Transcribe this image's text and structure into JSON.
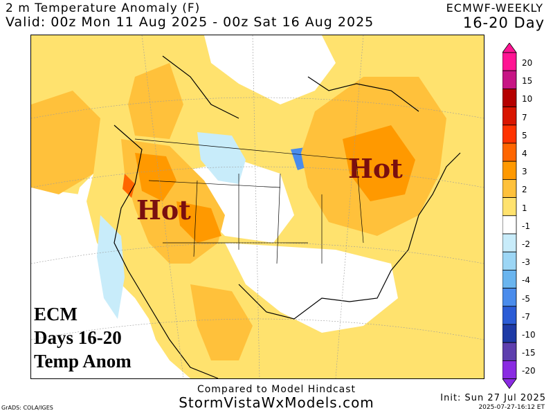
{
  "header": {
    "title": "2 m Temperature Anomaly (F)",
    "valid": "Valid: 00z Mon 11 Aug 2025 - 00z Sat 16 Aug 2025",
    "model": "ECMWF-WEEKLY",
    "period": "16-20 Day"
  },
  "map": {
    "annotations": {
      "hot_west": "Hot",
      "hot_east": "Hot"
    },
    "ecm_block": {
      "line1": "ECM",
      "line2": "Days 16-20",
      "line3": "Temp Anom"
    }
  },
  "colorbar": {
    "labels": [
      "20",
      "15",
      "10",
      "7",
      "5",
      "4",
      "3",
      "2",
      "1",
      "-1",
      "-2",
      "-3",
      "-4",
      "-5",
      "-7",
      "-10",
      "-15",
      "-20"
    ],
    "colors": [
      "#ff1493",
      "#c71585",
      "#b50000",
      "#d91500",
      "#ff3300",
      "#ff6600",
      "#ff9900",
      "#ffc13b",
      "#ffe26e",
      "#ffffff",
      "#c8ecfa",
      "#9cd6f5",
      "#6ab5ef",
      "#4a8cec",
      "#2b5cd6",
      "#1e3aa6",
      "#5e3fae",
      "#8a2be2"
    ]
  },
  "footer": {
    "compared": "Compared to Model Hindcast",
    "site": "StormVistaWxModels.com",
    "grads": "GrADS: COLA/IGES",
    "init": "Init: Sun 27 Jul 2025",
    "stamp": "2025-07-27-16:12 ET"
  }
}
